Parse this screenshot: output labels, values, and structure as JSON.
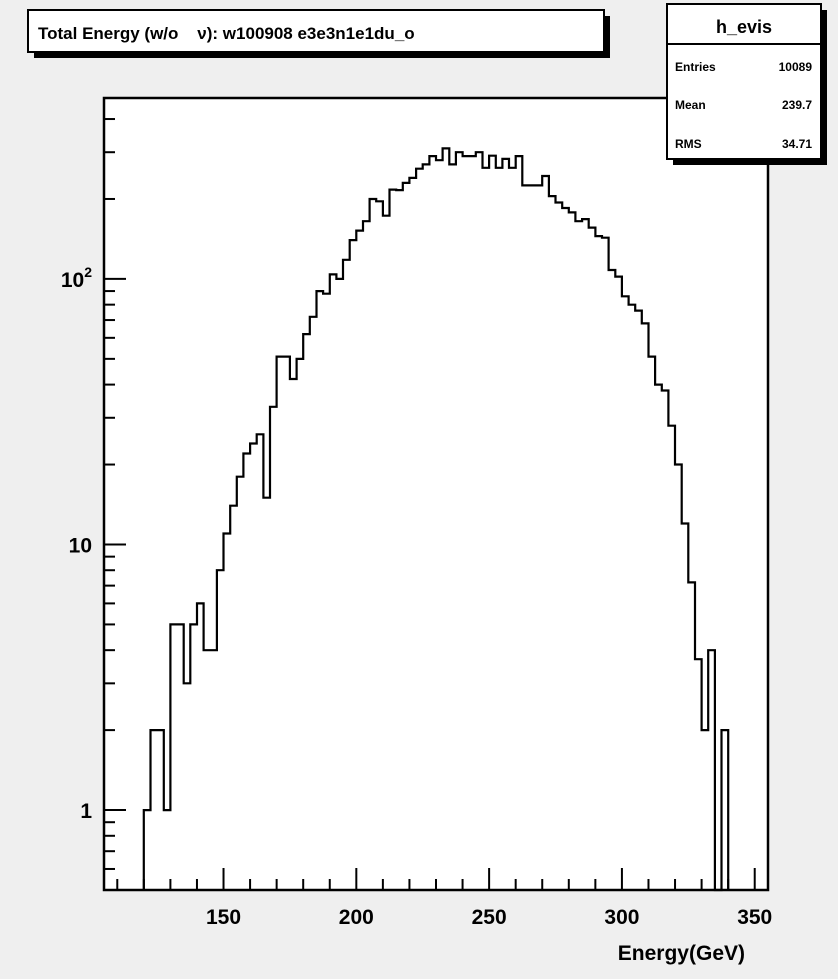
{
  "chart_data": {
    "type": "histogram",
    "title": "Total Energy (w/o    ν): w100908 e3e3n1e1du_o",
    "xlabel": "Energy(GeV)",
    "ylabel": "",
    "xlim": [
      105,
      355
    ],
    "ylim": [
      0.5,
      480
    ],
    "yscale": "log",
    "grid": false,
    "bin_width": 2.5,
    "x_ticks": [
      150,
      200,
      250,
      300,
      350
    ],
    "x_tick_labels": [
      "150",
      "200",
      "250",
      "300",
      "350"
    ],
    "y_ticks": [
      {
        "value": 1,
        "label": "1",
        "exp": ""
      },
      {
        "value": 10,
        "label": "10",
        "exp": ""
      },
      {
        "value": 100,
        "label": "10",
        "exp": "2"
      }
    ],
    "bins_x_start": [
      120,
      122.5,
      125,
      127.5,
      130,
      132.5,
      135,
      137.5,
      140,
      142.5,
      145,
      147.5,
      150,
      152.5,
      155,
      157.5,
      160,
      162.5,
      165,
      167.5,
      170,
      172.5,
      175,
      177.5,
      180,
      182.5,
      185,
      187.5,
      190,
      192.5,
      195,
      197.5,
      200,
      202.5,
      205,
      207.5,
      210,
      212.5,
      215,
      217.5,
      220,
      222.5,
      225,
      227.5,
      230,
      232.5,
      235,
      237.5,
      240,
      242.5,
      245,
      247.5,
      250,
      252.5,
      255,
      257.5,
      260,
      262.5,
      265,
      267.5,
      270,
      272.5,
      275,
      277.5,
      280,
      282.5,
      285,
      287.5,
      290,
      292.5,
      295,
      297.5,
      300,
      302.5,
      305,
      307.5,
      310,
      312.5,
      315,
      317.5,
      320,
      322.5,
      325,
      327.5,
      330,
      332.5,
      335,
      337.5
    ],
    "bins_y": [
      1,
      2,
      2,
      1,
      5,
      5,
      3,
      5,
      6,
      4,
      4,
      8,
      11,
      14,
      18,
      22,
      24,
      26,
      15,
      33,
      51,
      51,
      42,
      50,
      62,
      72,
      90,
      88,
      104,
      100,
      118,
      140,
      152,
      165,
      200,
      196,
      173,
      217,
      216,
      230,
      240,
      260,
      270,
      290,
      280,
      310,
      270,
      300,
      290,
      290,
      300,
      262,
      291,
      262,
      283,
      262,
      290,
      225,
      225,
      225,
      244,
      205,
      194,
      185,
      178,
      165,
      168,
      156,
      145,
      143,
      108,
      102,
      86,
      80,
      76,
      68,
      51,
      40,
      38,
      28,
      20,
      12,
      7.2,
      3.7,
      2,
      4,
      0.3,
      2
    ]
  },
  "stats_box": {
    "name": "h_evis",
    "entries_label": "Entries",
    "entries_value": "10089",
    "mean_label": "Mean",
    "mean_value": "239.7",
    "rms_label": "RMS",
    "rms_value": "34.71"
  },
  "colors": {
    "background": "#efefef",
    "frame": "#ffffff",
    "line": "#000000",
    "shadow": "#000000"
  }
}
